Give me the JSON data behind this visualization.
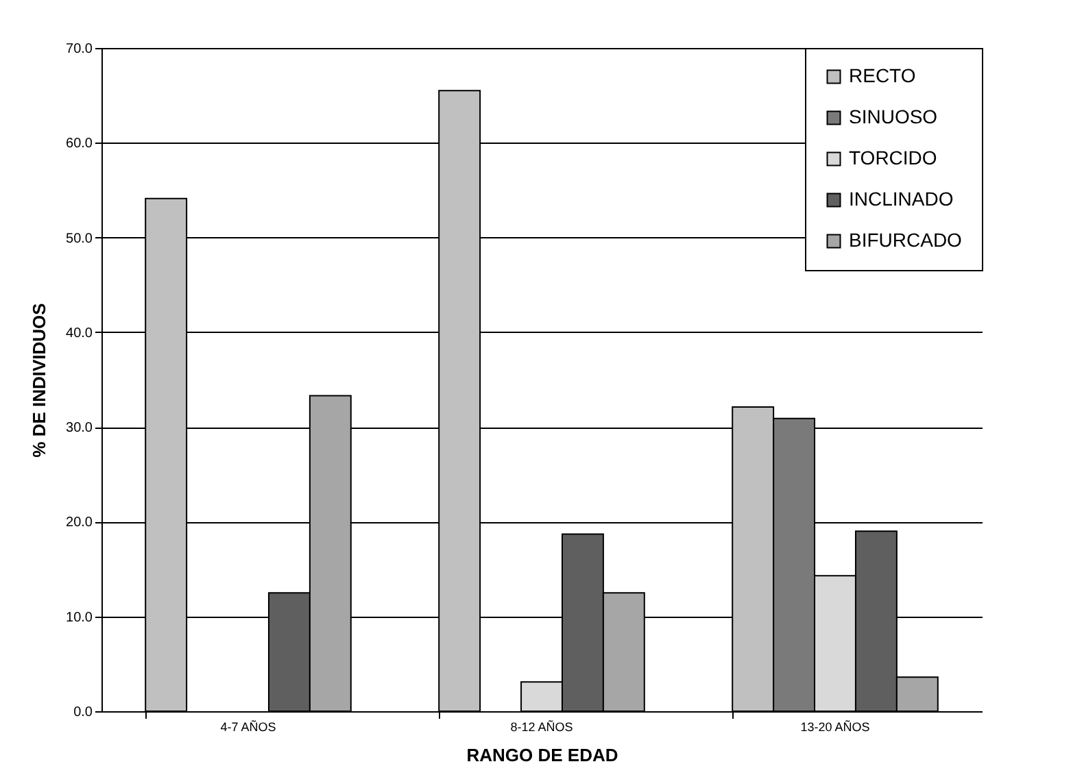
{
  "chart_data": {
    "type": "bar",
    "xlabel": "RANGO DE EDAD",
    "ylabel": "% DE INDIVIDUOS",
    "categories": [
      "4-7 AÑOS",
      "8-12 AÑOS",
      "13-20 AÑOS"
    ],
    "series": [
      {
        "name": "RECTO",
        "color": "#c0c0c0",
        "values": [
          54.1,
          65.5,
          32.1
        ]
      },
      {
        "name": "SINUOSO",
        "color": "#7a7a7a",
        "values": [
          0,
          0,
          30.9
        ]
      },
      {
        "name": "TORCIDO",
        "color": "#d9d9d9",
        "values": [
          0,
          3.1,
          14.3
        ]
      },
      {
        "name": "INCLINADO",
        "color": "#5f5f5f",
        "values": [
          12.5,
          18.7,
          19.0
        ]
      },
      {
        "name": "BIFURCADO",
        "color": "#a6a6a6",
        "values": [
          33.3,
          12.5,
          3.6
        ]
      }
    ],
    "ylim": [
      0,
      70
    ],
    "yticks": [
      {
        "value": 0,
        "label": "0.0"
      },
      {
        "value": 10,
        "label": "10.0"
      },
      {
        "value": 20,
        "label": "20.0"
      },
      {
        "value": 30,
        "label": "30.0"
      },
      {
        "value": 40,
        "label": "40.0"
      },
      {
        "value": 50,
        "label": "50.0"
      },
      {
        "value": 60,
        "label": "60.0"
      },
      {
        "value": 70,
        "label": "70.0"
      }
    ],
    "grid": "y",
    "legend": "top right"
  }
}
